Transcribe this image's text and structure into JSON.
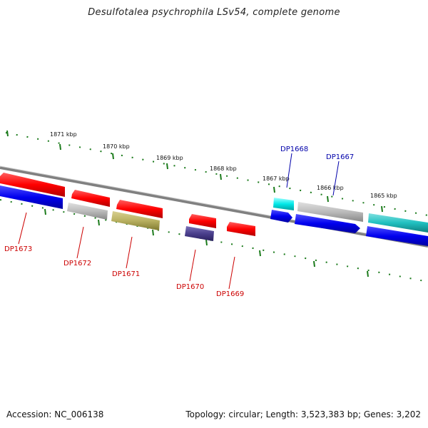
{
  "title": "Desulfotalea psychrophila LSv54, complete genome",
  "footer": {
    "accession": "Accession: NC_006138",
    "summary": "Topology: circular; Length: 3,523,383 bp; Genes: 3,202"
  },
  "scale_labels": [
    "1871 kbp",
    "1870 kbp",
    "1869 kbp",
    "1868 kbp",
    "1867 kbp",
    "1866 kbp",
    "1865 kbp"
  ],
  "genes": [
    {
      "id": "DP1673",
      "label": "DP1673",
      "color": "#dd0000",
      "strand": "reverse"
    },
    {
      "id": "DP1672",
      "label": "DP1672",
      "color": "#dd0000",
      "strand": "reverse"
    },
    {
      "id": "DP1671",
      "label": "DP1671",
      "color": "#dd0000",
      "strand": "reverse"
    },
    {
      "id": "DP1670",
      "label": "DP1670",
      "color": "#dd0000",
      "strand": "reverse"
    },
    {
      "id": "DP1669",
      "label": "DP1669",
      "color": "#dd0000",
      "strand": "reverse"
    },
    {
      "id": "DP1668",
      "label": "DP1668",
      "color": "#0000aa",
      "strand": "forward"
    },
    {
      "id": "DP1667",
      "label": "DP1667",
      "color": "#0000aa",
      "strand": "forward"
    }
  ],
  "colors": {
    "backbone": "#808080",
    "ticks": "#1a7a1a",
    "red": "#ff0000",
    "blue": "#0000ee",
    "grey": "#bbbbbb",
    "olive": "#b8b060",
    "navy": "#4a3f8c",
    "cyan": "#00e8e8",
    "teal": "#20c0c0"
  }
}
